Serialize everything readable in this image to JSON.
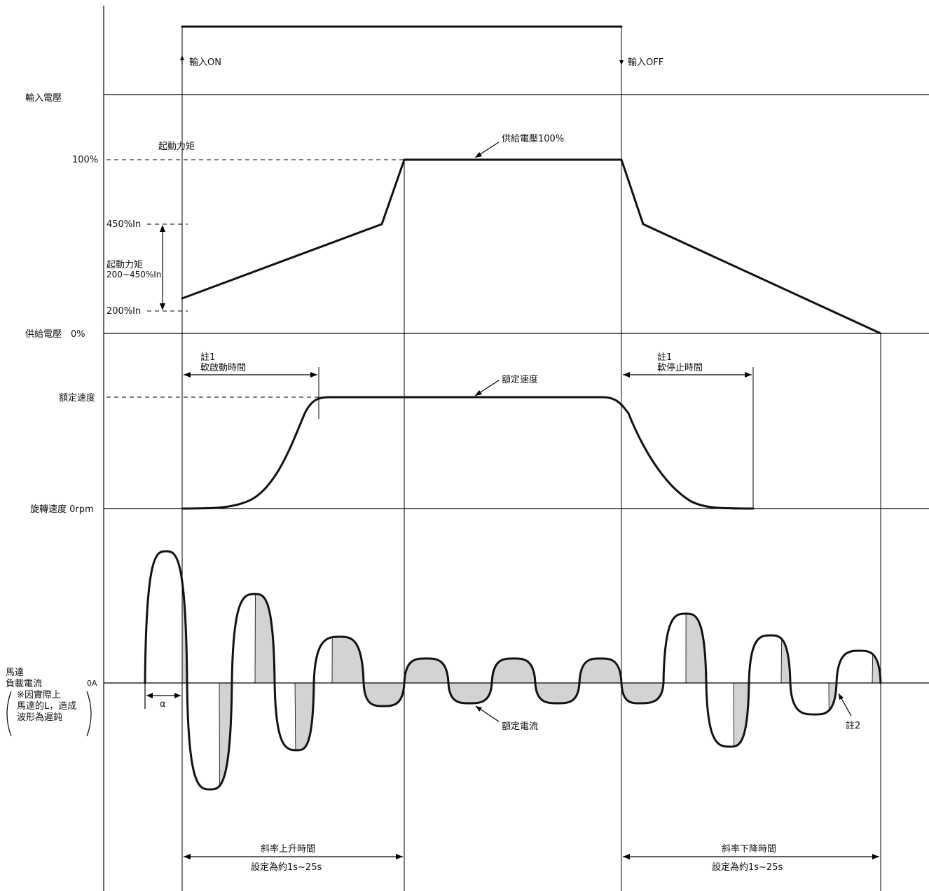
{
  "labels": {
    "input_voltage": "輸入電壓",
    "input_on": "輸入ON",
    "input_off": "輸入OFF",
    "start_torque_top": "起動力矩",
    "pct_100": "100%",
    "pct_450": "450%In",
    "pct_200": "200%In",
    "torque_range_1": "起動力矩",
    "torque_range_2": "200~450%In",
    "supply_voltage_0": "供給電壓　0%",
    "supply_voltage_100": "供給電壓100%",
    "note1_a": "註1",
    "soft_start_time": "軟啟動時間",
    "note1_b": "註1",
    "soft_stop_time": "軟停止時間",
    "rated_speed_axis": "額定速度",
    "rated_speed_callout": "額定速度",
    "rotation_speed": "旋轉速度 0rpm",
    "motor": "馬達",
    "load_current": "負載電流",
    "zero_amp": "0A",
    "paren_line1": "※因實際上",
    "paren_line2": "馬達的L，造成",
    "paren_line3": "波形為遲鈍",
    "alpha": "α",
    "rated_current": "額定電流",
    "note2": "註2",
    "ramp_up": "斜率上升時間",
    "ramp_up_setting": "設定為約1s~25s",
    "ramp_down": "斜率下降時間",
    "ramp_down_setting": "設定為約1s~25s"
  },
  "colors": {
    "line": "#000000",
    "shade": "#d3d3d3"
  }
}
